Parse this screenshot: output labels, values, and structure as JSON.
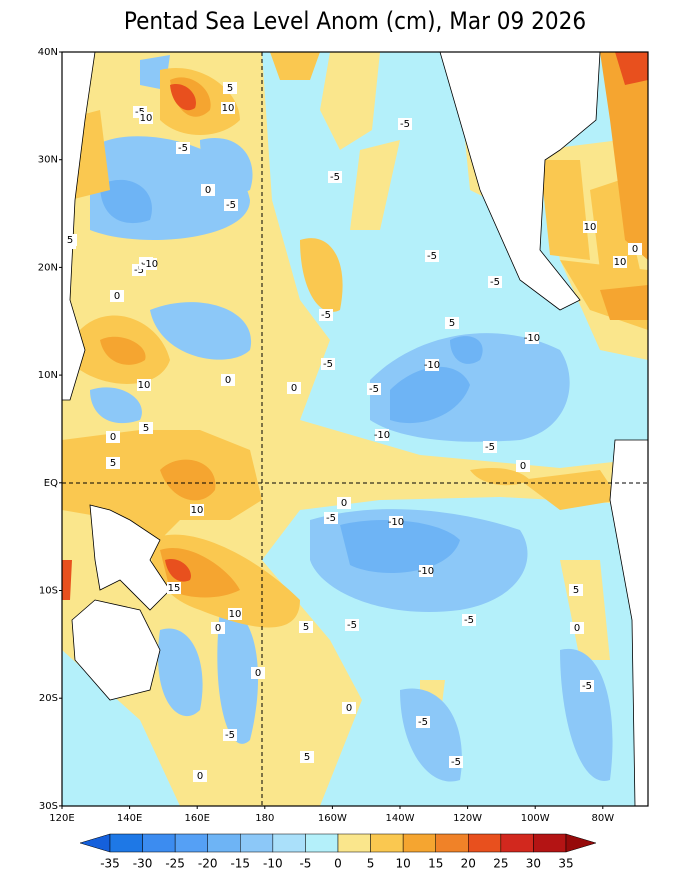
{
  "map": {
    "title": "Pentad Sea Level Anom (cm), Mar 09 2026",
    "lat_labels": [
      "40N",
      "30N",
      "20N",
      "10N",
      "EQ",
      "10S",
      "20S",
      "30S"
    ],
    "lon_labels": [
      "120E",
      "140E",
      "160E",
      "180",
      "160W",
      "140W",
      "120W",
      "100W",
      "80W"
    ],
    "contour_labels": [
      -5,
      10,
      5,
      10,
      -5,
      0,
      -5,
      -5,
      -5,
      -10,
      0,
      -5,
      5,
      0,
      -5,
      -5,
      -10,
      -5,
      10,
      5,
      0,
      5,
      10,
      -5,
      0,
      -10,
      -10,
      0,
      -5,
      -5,
      5,
      5,
      -5,
      0,
      -10,
      15,
      10,
      0,
      -5,
      -5,
      5,
      0,
      -5,
      -5,
      -5,
      0,
      0,
      -5,
      -5,
      10,
      10,
      0,
      -10,
      5,
      -5,
      0
    ],
    "colorbar": {
      "levels": [
        -35,
        -30,
        -25,
        -20,
        -15,
        -10,
        -5,
        0,
        5,
        10,
        15,
        20,
        25,
        30,
        35
      ],
      "colors": [
        "#1560dc",
        "#1e78e6",
        "#3c8cf0",
        "#55a0f5",
        "#6eb4f5",
        "#8cc8f8",
        "#aae0fa",
        "#b4f0fa",
        "#fae68c",
        "#fac850",
        "#f5a530",
        "#f08228",
        "#e8501e",
        "#d2281e",
        "#b41414",
        "#960a0a"
      ]
    }
  }
}
